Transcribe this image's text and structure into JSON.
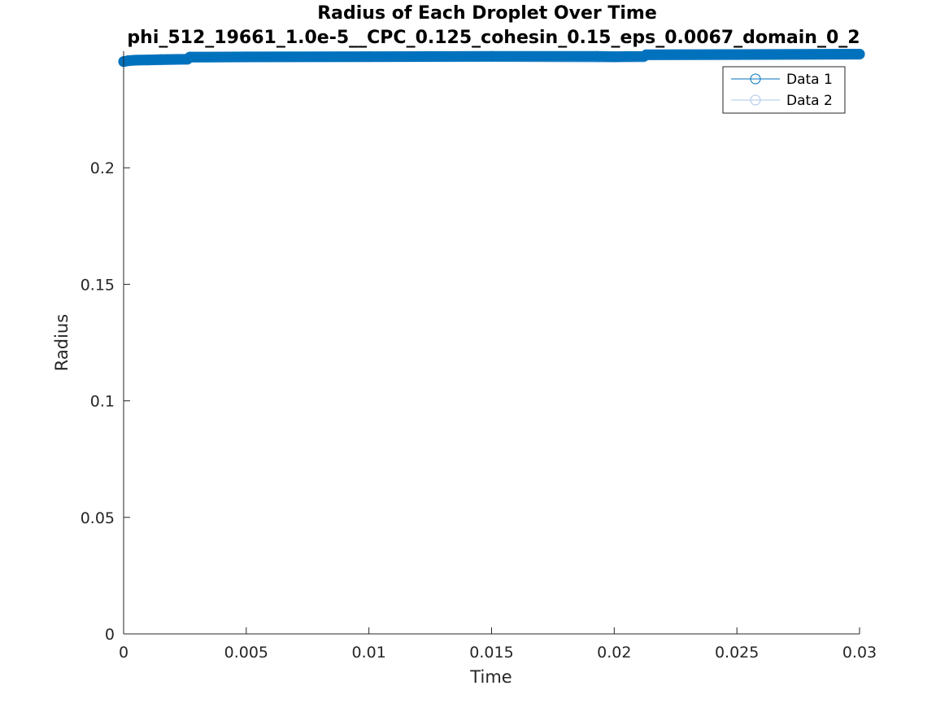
{
  "chart_data": {
    "type": "line",
    "title": "Radius of Each Droplet Over Time",
    "subtitle": "phi_512_19661_1.0e-5__CPC_0.125_cohesin_0.15_eps_0.0067_domain_0_2",
    "xlabel": "Time",
    "ylabel": "Radius",
    "xlim": [
      0,
      0.03
    ],
    "ylim": [
      0,
      0.25
    ],
    "xticks": [
      0,
      0.005,
      0.01,
      0.015,
      0.02,
      0.025,
      0.03
    ],
    "xtick_labels": [
      "0",
      "0.005",
      "0.01",
      "0.015",
      "0.02",
      "0.025",
      "0.03"
    ],
    "yticks": [
      0,
      0.05,
      0.1,
      0.15,
      0.2
    ],
    "ytick_labels": [
      "0",
      "0.05",
      "0.1",
      "0.15",
      "0.2"
    ],
    "grid": false,
    "legend_position": "top-right",
    "series": [
      {
        "name": "Data 1",
        "color": "#0072BD",
        "marker": "circle",
        "x": [
          0,
          0.0002,
          0.0005,
          0.001,
          0.0015,
          0.002,
          0.0026,
          0.0027,
          0.005,
          0.01,
          0.015,
          0.0193,
          0.02,
          0.0212,
          0.0213,
          0.025,
          0.03
        ],
        "y": [
          0.2456,
          0.246,
          0.2462,
          0.2463,
          0.2464,
          0.2465,
          0.2466,
          0.2475,
          0.2476,
          0.2477,
          0.2478,
          0.2478,
          0.2477,
          0.2478,
          0.2485,
          0.2486,
          0.2488
        ]
      },
      {
        "name": "Data 2",
        "color": "#AEC7E8",
        "marker": "circle",
        "x": [
          0,
          0.0002,
          0.0005,
          0.001,
          0.0015,
          0.002,
          0.0026,
          0.0027,
          0.005,
          0.01,
          0.015,
          0.0193,
          0.02,
          0.0212,
          0.0213,
          0.025,
          0.03
        ],
        "y": [
          0.2455,
          0.2459,
          0.2461,
          0.2462,
          0.2463,
          0.2464,
          0.2465,
          0.2474,
          0.2475,
          0.2476,
          0.2477,
          0.2474,
          0.2474,
          0.2475,
          0.2484,
          0.2485,
          0.2487
        ]
      }
    ]
  }
}
